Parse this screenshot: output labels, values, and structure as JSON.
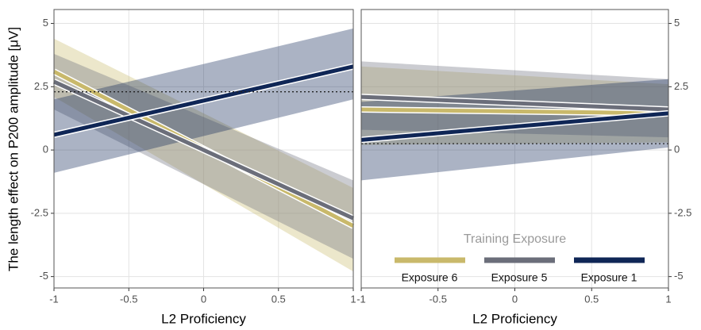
{
  "chart_data": [
    {
      "type": "line",
      "xlabel": "L2 Proficiency",
      "ylabel": "The length effect on P200 amplitude [μV]",
      "x": [
        -1,
        1
      ],
      "xlim": [
        -1,
        1
      ],
      "xticks": [
        -1,
        -0.5,
        0,
        0.5,
        1
      ],
      "ylim": [
        -5.45,
        5.55
      ],
      "yticks": [
        -5,
        -2.5,
        0,
        2.5,
        5
      ],
      "grid": true,
      "hline": 2.3,
      "yaxis_side": "left",
      "series": [
        {
          "color": "#c9b96b",
          "values": [
            3.1,
            -3.0
          ],
          "lower": [
            2.1,
            -4.8
          ],
          "upper": [
            4.4,
            -1.5
          ]
        },
        {
          "color": "#6b6e7a",
          "values": [
            2.7,
            -2.7
          ],
          "lower": [
            1.6,
            -4.3
          ],
          "upper": [
            3.8,
            -1.2
          ]
        },
        {
          "color": "#0f2656",
          "values": [
            0.6,
            3.3
          ],
          "lower": [
            -0.9,
            2.0
          ],
          "upper": [
            2.0,
            4.8
          ]
        }
      ]
    },
    {
      "type": "line",
      "xlabel": "L2 Proficiency",
      "x": [
        -1,
        1
      ],
      "xlim": [
        -1,
        1
      ],
      "xticks": [
        -1,
        -0.5,
        0,
        0.5,
        1
      ],
      "ylim": [
        -5.45,
        5.55
      ],
      "yticks": [
        -5,
        -2.5,
        0,
        2.5,
        5
      ],
      "grid": true,
      "hline": 0.25,
      "yaxis_side": "right",
      "legend": {
        "title": "Training Exposure",
        "position": "bottom"
      },
      "series": [
        {
          "name": "Exposure 6",
          "color": "#c9b96b",
          "values": [
            1.6,
            1.45
          ],
          "lower": [
            0.2,
            0.3
          ],
          "upper": [
            3.3,
            2.6
          ]
        },
        {
          "name": "Exposure 5",
          "color": "#6b6e7a",
          "values": [
            2.1,
            1.6
          ],
          "lower": [
            0.8,
            0.5
          ],
          "upper": [
            3.5,
            2.8
          ]
        },
        {
          "name": "Exposure 1",
          "color": "#0f2656",
          "values": [
            0.4,
            1.45
          ],
          "lower": [
            -1.2,
            0.1
          ],
          "upper": [
            1.9,
            2.8
          ]
        }
      ]
    }
  ]
}
